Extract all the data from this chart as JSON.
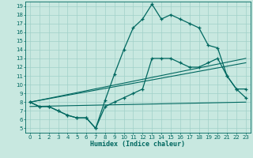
{
  "xlabel": "Humidex (Indice chaleur)",
  "bg_color": "#c8e8e0",
  "grid_color": "#a0d0c8",
  "line_color": "#006860",
  "xlim": [
    -0.5,
    23.5
  ],
  "ylim": [
    4.5,
    19.5
  ],
  "xticks": [
    0,
    1,
    2,
    3,
    4,
    5,
    6,
    7,
    8,
    9,
    10,
    11,
    12,
    13,
    14,
    15,
    16,
    17,
    18,
    19,
    20,
    21,
    22,
    23
  ],
  "yticks": [
    5,
    6,
    7,
    8,
    9,
    10,
    11,
    12,
    13,
    14,
    15,
    16,
    17,
    18,
    19
  ],
  "curve1_x": [
    0,
    1,
    2,
    3,
    4,
    5,
    6,
    7,
    8,
    9,
    10,
    11,
    12,
    13,
    14,
    15,
    16,
    17,
    18,
    19,
    20,
    21,
    22,
    23
  ],
  "curve1_y": [
    8.0,
    7.5,
    7.5,
    7.0,
    6.5,
    6.2,
    6.2,
    5.0,
    8.2,
    11.2,
    14.0,
    16.5,
    17.5,
    19.2,
    17.5,
    18.0,
    17.5,
    17.0,
    16.5,
    14.5,
    14.2,
    11.0,
    9.5,
    9.5
  ],
  "curve2_x": [
    0,
    1,
    2,
    3,
    4,
    5,
    6,
    7,
    8,
    9,
    10,
    11,
    12,
    13,
    14,
    15,
    16,
    17,
    18,
    19,
    20,
    21,
    22,
    23
  ],
  "curve2_y": [
    8.0,
    7.5,
    7.5,
    7.0,
    6.5,
    6.2,
    6.2,
    5.0,
    7.5,
    8.0,
    8.5,
    9.0,
    9.5,
    13.0,
    13.0,
    13.0,
    12.5,
    12.0,
    12.0,
    12.5,
    13.0,
    11.0,
    9.5,
    8.5
  ],
  "line1_x": [
    0,
    23
  ],
  "line1_y": [
    8.0,
    13.0
  ],
  "line2_x": [
    0,
    23
  ],
  "line2_y": [
    8.0,
    12.5
  ],
  "line3_x": [
    0,
    23
  ],
  "line3_y": [
    7.5,
    8.0
  ]
}
